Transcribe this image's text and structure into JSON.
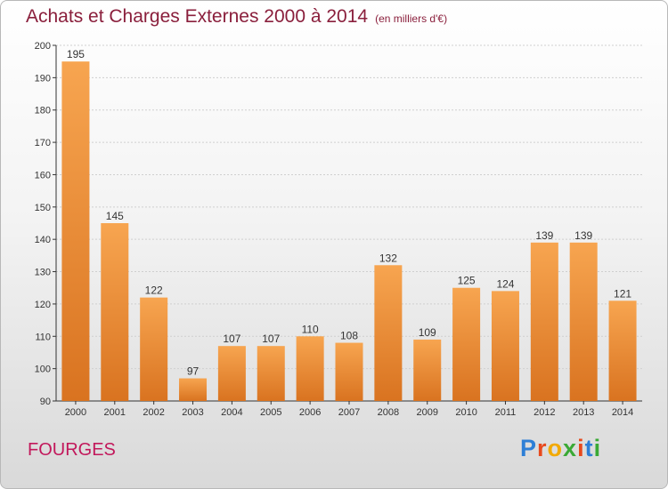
{
  "header": {
    "title": "Achats et Charges Externes 2000 à 2014",
    "subtitle": "(en milliers d'€)"
  },
  "footer": {
    "commune": "FOURGES",
    "logo": "Proxiti"
  },
  "colors": {
    "bar_top": "#f7a550",
    "bar_bottom": "#d97320",
    "title": "#8a1f3c",
    "commune": "#c2185b"
  },
  "chart_data": {
    "type": "bar",
    "title": "Achats et Charges Externes 2000 à 2014",
    "subtitle": "(en milliers d'€)",
    "categories": [
      "2000",
      "2001",
      "2002",
      "2003",
      "2004",
      "2005",
      "2006",
      "2007",
      "2008",
      "2009",
      "2010",
      "2011",
      "2012",
      "2013",
      "2014"
    ],
    "values": [
      195,
      145,
      122,
      97,
      107,
      107,
      110,
      108,
      132,
      109,
      125,
      124,
      139,
      139,
      121
    ],
    "ylim": [
      90,
      200
    ],
    "yticks": [
      90,
      100,
      110,
      120,
      130,
      140,
      150,
      160,
      170,
      180,
      190,
      200
    ],
    "grid": true,
    "data_labels": true
  }
}
